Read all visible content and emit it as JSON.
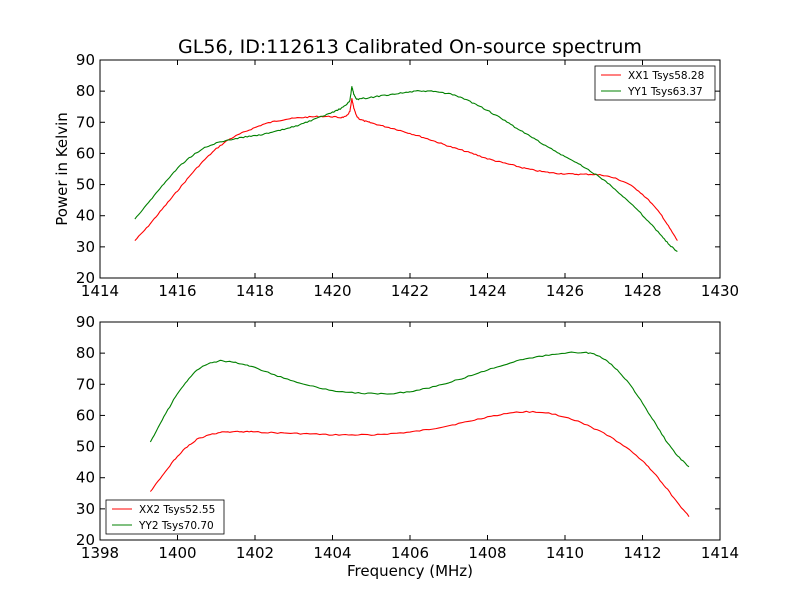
{
  "figure": {
    "title": "GL56, ID:112613 Calibrated On-source spectrum",
    "ylabel": "Power in Kelvin",
    "xlabel": "Frequency (MHz)"
  },
  "chart_data": [
    {
      "type": "line",
      "title": "GL56, ID:112613 Calibrated On-source spectrum",
      "ylabel": "Power in Kelvin",
      "xlabel": "",
      "xlim": [
        1414,
        1430
      ],
      "ylim": [
        20,
        90
      ],
      "xticks": [
        1414,
        1416,
        1418,
        1420,
        1422,
        1424,
        1426,
        1428,
        1430
      ],
      "yticks": [
        20,
        30,
        40,
        50,
        60,
        70,
        80,
        90
      ],
      "xtick_labels": [
        "1414",
        "1416",
        "1418",
        "1420",
        "1422",
        "1424",
        "1426",
        "1428",
        "1430"
      ],
      "ytick_labels": [
        "20",
        "30",
        "40",
        "50",
        "60",
        "70",
        "80",
        "90"
      ],
      "grid": false,
      "legend_position": "top-right",
      "series": [
        {
          "name": "XX1 Tsys58.28",
          "color": "#ff0000",
          "x": [
            1414.9,
            1415.2,
            1415.5,
            1415.8,
            1416.1,
            1416.4,
            1416.7,
            1417.0,
            1417.3,
            1417.6,
            1417.9,
            1418.2,
            1418.5,
            1418.8,
            1419.1,
            1419.4,
            1419.7,
            1420.0,
            1420.2,
            1420.35,
            1420.45,
            1420.5,
            1420.55,
            1420.62,
            1420.7,
            1420.85,
            1421.0,
            1421.3,
            1421.6,
            1421.9,
            1422.2,
            1422.5,
            1422.8,
            1423.1,
            1423.4,
            1423.7,
            1424.0,
            1424.3,
            1424.6,
            1424.9,
            1425.2,
            1425.5,
            1425.8,
            1426.1,
            1426.4,
            1426.7,
            1427.0,
            1427.3,
            1427.6,
            1427.9,
            1428.2,
            1428.5,
            1428.7,
            1428.9
          ],
          "y": [
            32,
            36,
            40.5,
            45,
            49.5,
            54,
            58,
            61.5,
            64.3,
            66.2,
            67.8,
            69.3,
            70.3,
            71.0,
            71.4,
            71.7,
            71.9,
            71.8,
            71.5,
            71.8,
            73.5,
            77.5,
            74.5,
            72.0,
            71.0,
            70.3,
            69.8,
            68.8,
            67.9,
            66.8,
            65.7,
            64.5,
            63.2,
            61.9,
            60.8,
            59.6,
            58.3,
            57.3,
            56.4,
            55.4,
            54.6,
            54.0,
            53.6,
            53.4,
            53.3,
            53.3,
            53.0,
            52.0,
            50.5,
            48.0,
            44.5,
            40.0,
            36.0,
            32
          ]
        },
        {
          "name": "YY1 Tsys63.37",
          "color": "#008000",
          "x": [
            1414.9,
            1415.2,
            1415.5,
            1415.8,
            1416.1,
            1416.4,
            1416.7,
            1417.0,
            1417.3,
            1417.6,
            1417.9,
            1418.2,
            1418.5,
            1418.8,
            1419.1,
            1419.4,
            1419.7,
            1420.0,
            1420.2,
            1420.35,
            1420.45,
            1420.5,
            1420.55,
            1420.62,
            1420.7,
            1421.0,
            1421.3,
            1421.6,
            1421.9,
            1422.2,
            1422.5,
            1422.8,
            1423.1,
            1423.4,
            1423.7,
            1424.0,
            1424.3,
            1424.6,
            1424.9,
            1425.2,
            1425.5,
            1425.8,
            1426.1,
            1426.4,
            1426.7,
            1427.0,
            1427.3,
            1427.6,
            1427.9,
            1428.2,
            1428.5,
            1428.7,
            1428.9
          ],
          "y": [
            39,
            43.5,
            48,
            52.5,
            56.5,
            59.5,
            61.8,
            63.3,
            64.3,
            65.0,
            65.6,
            66.1,
            66.9,
            67.9,
            69.0,
            70.3,
            71.7,
            73.2,
            74.3,
            75.5,
            77.0,
            81.5,
            79.0,
            77.3,
            77.5,
            78.0,
            78.6,
            79.1,
            79.6,
            80.0,
            80.0,
            79.6,
            78.9,
            77.5,
            75.8,
            73.8,
            71.6,
            69.3,
            67.0,
            64.8,
            62.5,
            60.3,
            58.3,
            56.3,
            54.0,
            51.5,
            48.5,
            45.0,
            41.5,
            37.5,
            33.5,
            30.5,
            28.5
          ]
        }
      ]
    },
    {
      "type": "line",
      "title": "",
      "ylabel": "",
      "xlabel": "Frequency (MHz)",
      "xlim": [
        1398,
        1414
      ],
      "ylim": [
        20,
        90
      ],
      "xticks": [
        1398,
        1400,
        1402,
        1404,
        1406,
        1408,
        1410,
        1412,
        1414
      ],
      "yticks": [
        20,
        30,
        40,
        50,
        60,
        70,
        80,
        90
      ],
      "xtick_labels": [
        "1398",
        "1400",
        "1402",
        "1404",
        "1406",
        "1408",
        "1410",
        "1412",
        "1414"
      ],
      "ytick_labels": [
        "20",
        "30",
        "40",
        "50",
        "60",
        "70",
        "80",
        "90"
      ],
      "grid": false,
      "legend_position": "bottom-left",
      "series": [
        {
          "name": "XX2 Tsys52.55",
          "color": "#ff0000",
          "x": [
            1399.3,
            1399.6,
            1399.9,
            1400.2,
            1400.5,
            1400.8,
            1401.1,
            1401.4,
            1401.7,
            1402.0,
            1402.5,
            1403.0,
            1403.5,
            1404.0,
            1404.5,
            1405.0,
            1405.5,
            1406.0,
            1406.5,
            1407.0,
            1407.5,
            1408.0,
            1408.5,
            1409.0,
            1409.5,
            1410.0,
            1410.5,
            1411.0,
            1411.5,
            1412.0,
            1412.3,
            1412.6,
            1412.9,
            1413.2
          ],
          "y": [
            35.5,
            40.5,
            45.5,
            49.5,
            52.3,
            53.8,
            54.5,
            54.8,
            54.8,
            54.7,
            54.4,
            54.2,
            54.0,
            53.8,
            53.7,
            53.8,
            54.1,
            54.6,
            55.5,
            56.7,
            58.0,
            59.5,
            60.7,
            61.2,
            60.9,
            59.6,
            57.3,
            54.3,
            50.5,
            45.5,
            41.5,
            37.0,
            32.0,
            27.5
          ]
        },
        {
          "name": "YY2 Tsys70.70",
          "color": "#008000",
          "x": [
            1399.3,
            1399.6,
            1399.9,
            1400.2,
            1400.5,
            1400.8,
            1401.1,
            1401.4,
            1401.7,
            1402.0,
            1402.5,
            1403.0,
            1403.5,
            1404.0,
            1404.5,
            1405.0,
            1405.5,
            1406.0,
            1406.5,
            1407.0,
            1407.5,
            1408.0,
            1408.5,
            1409.0,
            1409.5,
            1410.0,
            1410.5,
            1410.8,
            1411.1,
            1411.4,
            1411.7,
            1412.0,
            1412.3,
            1412.6,
            1412.9,
            1413.2
          ],
          "y": [
            51.5,
            58.5,
            65.0,
            70.5,
            74.5,
            76.8,
            77.5,
            77.3,
            76.5,
            75.3,
            73.0,
            71.0,
            69.3,
            68.0,
            67.3,
            67.0,
            67.0,
            67.6,
            68.9,
            70.6,
            72.5,
            74.6,
            76.6,
            78.2,
            79.3,
            80.1,
            80.3,
            79.5,
            77.5,
            74.0,
            69.5,
            64.0,
            58.0,
            52.0,
            47.0,
            43.5
          ]
        }
      ]
    }
  ]
}
